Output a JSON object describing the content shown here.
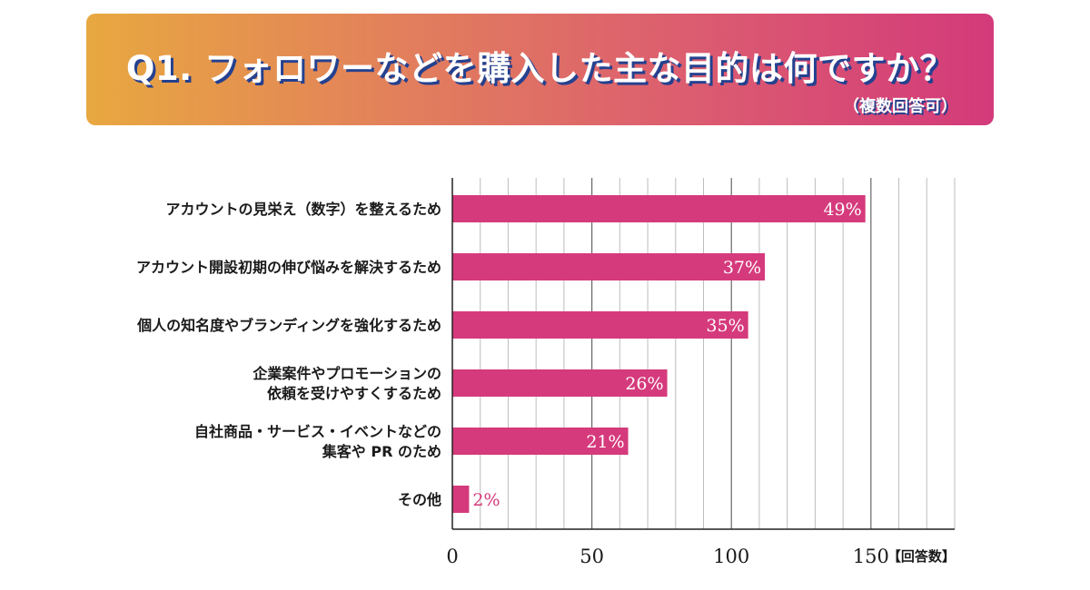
{
  "header": {
    "title": "Q1. フォロワーなどを購入した主な目的は何ですか？",
    "subtitle": "（複数回答可）"
  },
  "colors": {
    "bar": "#d53a7c",
    "banner_gradient": [
      "#e8a840",
      "#d33a7a"
    ],
    "title_shadow": "#25418f"
  },
  "chart_data": {
    "type": "bar",
    "orientation": "horizontal",
    "categories": [
      [
        "アカウントの見栄え（数字）を整えるため"
      ],
      [
        "アカウント開設初期の伸び悩みを解決するため"
      ],
      [
        "個人の知名度やブランディングを強化するため"
      ],
      [
        "企業案件やプロモーションの",
        "依頼を受けやすくするため"
      ],
      [
        "自社商品・サービス・イベントなどの",
        "集客や PR のため"
      ],
      [
        "その他"
      ]
    ],
    "values": [
      148,
      112,
      106,
      77,
      63,
      6
    ],
    "data_labels": [
      "49%",
      "37%",
      "35%",
      "26%",
      "21%",
      "2%"
    ],
    "xlim": [
      0,
      180
    ],
    "xticks": [
      0,
      50,
      100,
      150
    ],
    "unit_label": "【回答数】",
    "grid": "vertical every 10"
  }
}
